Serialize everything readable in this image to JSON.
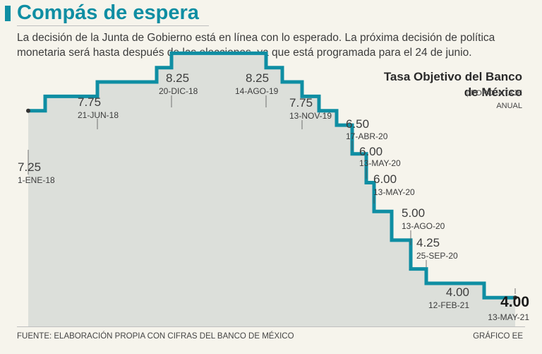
{
  "header": {
    "title": "Compás de espera",
    "subtitle": "La decisión de la Junta de Gobierno está en línea con lo esperado. La próxima decisión de política monetaria será hasta después de las elecciones, ya que está programada para el 24 de junio."
  },
  "legend": {
    "title_line1": "Tasa Objetivo del Banco",
    "title_line2": "de México",
    "unit_line1": "PORCENTAJE",
    "unit_line2": "ANUAL"
  },
  "footer": {
    "source": "FUENTE: ELABORACIÓN PROPIA CON CIFRAS DEL BANCO DE MÉXICO",
    "credit": "GRÁFICO EE"
  },
  "colors": {
    "line": "#0f8ea3",
    "area": "#dcdfda",
    "accent": "#0f8ea3"
  },
  "chart_data": {
    "type": "area",
    "title": "Tasa Objetivo del Banco de México",
    "ylabel": "PORCENTAJE ANUAL",
    "ylim": [
      3.5,
      8.5
    ],
    "steps": [
      7.25,
      7.5,
      7.75,
      8.0,
      8.25,
      8.0,
      7.75,
      7.5,
      7.25,
      7.0,
      6.5,
      6.0,
      5.5,
      5.0,
      4.5,
      4.25,
      4.0
    ],
    "annotations": [
      {
        "value": "7.25",
        "date": "1-ENE-18",
        "style": "normal"
      },
      {
        "value": "7.75",
        "date": "21-JUN-18",
        "style": "normal"
      },
      {
        "value": "8.25",
        "date": "20-DIC-18",
        "style": "normal"
      },
      {
        "value": "8.25",
        "date": "14-AGO-19",
        "style": "normal"
      },
      {
        "value": "7.75",
        "date": "13-NOV-19",
        "style": "normal"
      },
      {
        "value": "6.50",
        "date": "17-ABR-20",
        "style": "normal"
      },
      {
        "value": "6.00",
        "date": "13-MAY-20",
        "style": "normal"
      },
      {
        "value": "6.00",
        "date": "13-MAY-20",
        "style": "normal"
      },
      {
        "value": "5.00",
        "date": "13-AGO-20",
        "style": "normal"
      },
      {
        "value": "4.25",
        "date": "25-SEP-20",
        "style": "normal"
      },
      {
        "value": "4.00",
        "date": "12-FEB-21",
        "style": "normal"
      },
      {
        "value": "4.00",
        "date": "13-MAY-21",
        "style": "strong"
      }
    ]
  }
}
